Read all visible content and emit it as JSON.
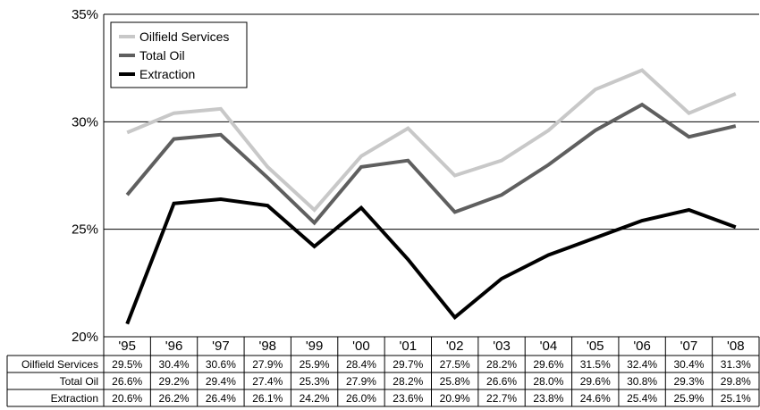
{
  "chart_data": {
    "type": "line",
    "categories": [
      "'95",
      "'96",
      "'97",
      "'98",
      "'99",
      "'00",
      "'01",
      "'02",
      "'03",
      "'04",
      "'05",
      "'06",
      "'07",
      "'08"
    ],
    "series": [
      {
        "name": "Oilfield Services",
        "color": "#c8c8c8",
        "values": [
          29.5,
          30.4,
          30.6,
          27.9,
          25.9,
          28.4,
          29.7,
          27.5,
          28.2,
          29.6,
          31.5,
          32.4,
          30.4,
          31.3
        ],
        "labels": [
          "29.5%",
          "30.4%",
          "30.6%",
          "27.9%",
          "25.9%",
          "28.4%",
          "29.7%",
          "27.5%",
          "28.2%",
          "29.6%",
          "31.5%",
          "32.4%",
          "30.4%",
          "31.3%"
        ]
      },
      {
        "name": "Total Oil",
        "color": "#5f5f5f",
        "values": [
          26.6,
          29.2,
          29.4,
          27.4,
          25.3,
          27.9,
          28.2,
          25.8,
          26.6,
          28.0,
          29.6,
          30.8,
          29.3,
          29.8
        ],
        "labels": [
          "26.6%",
          "29.2%",
          "29.4%",
          "27.4%",
          "25.3%",
          "27.9%",
          "28.2%",
          "25.8%",
          "26.6%",
          "28.0%",
          "29.6%",
          "30.8%",
          "29.3%",
          "29.8%"
        ]
      },
      {
        "name": "Extraction",
        "color": "#000000",
        "values": [
          20.6,
          26.2,
          26.4,
          26.1,
          24.2,
          26.0,
          23.6,
          20.9,
          22.7,
          23.8,
          24.6,
          25.4,
          25.9,
          25.1
        ],
        "labels": [
          "20.6%",
          "26.2%",
          "26.4%",
          "26.1%",
          "24.2%",
          "26.0%",
          "23.6%",
          "20.9%",
          "22.7%",
          "23.8%",
          "24.6%",
          "25.4%",
          "25.9%",
          "25.1%"
        ]
      }
    ],
    "y_ticks": [
      20,
      25,
      30,
      35
    ],
    "y_tick_labels": [
      "20%",
      "25%",
      "30%",
      "35%"
    ],
    "ylim": [
      20,
      35
    ],
    "grid": true,
    "legend_position": "top-left",
    "data_table": true
  }
}
